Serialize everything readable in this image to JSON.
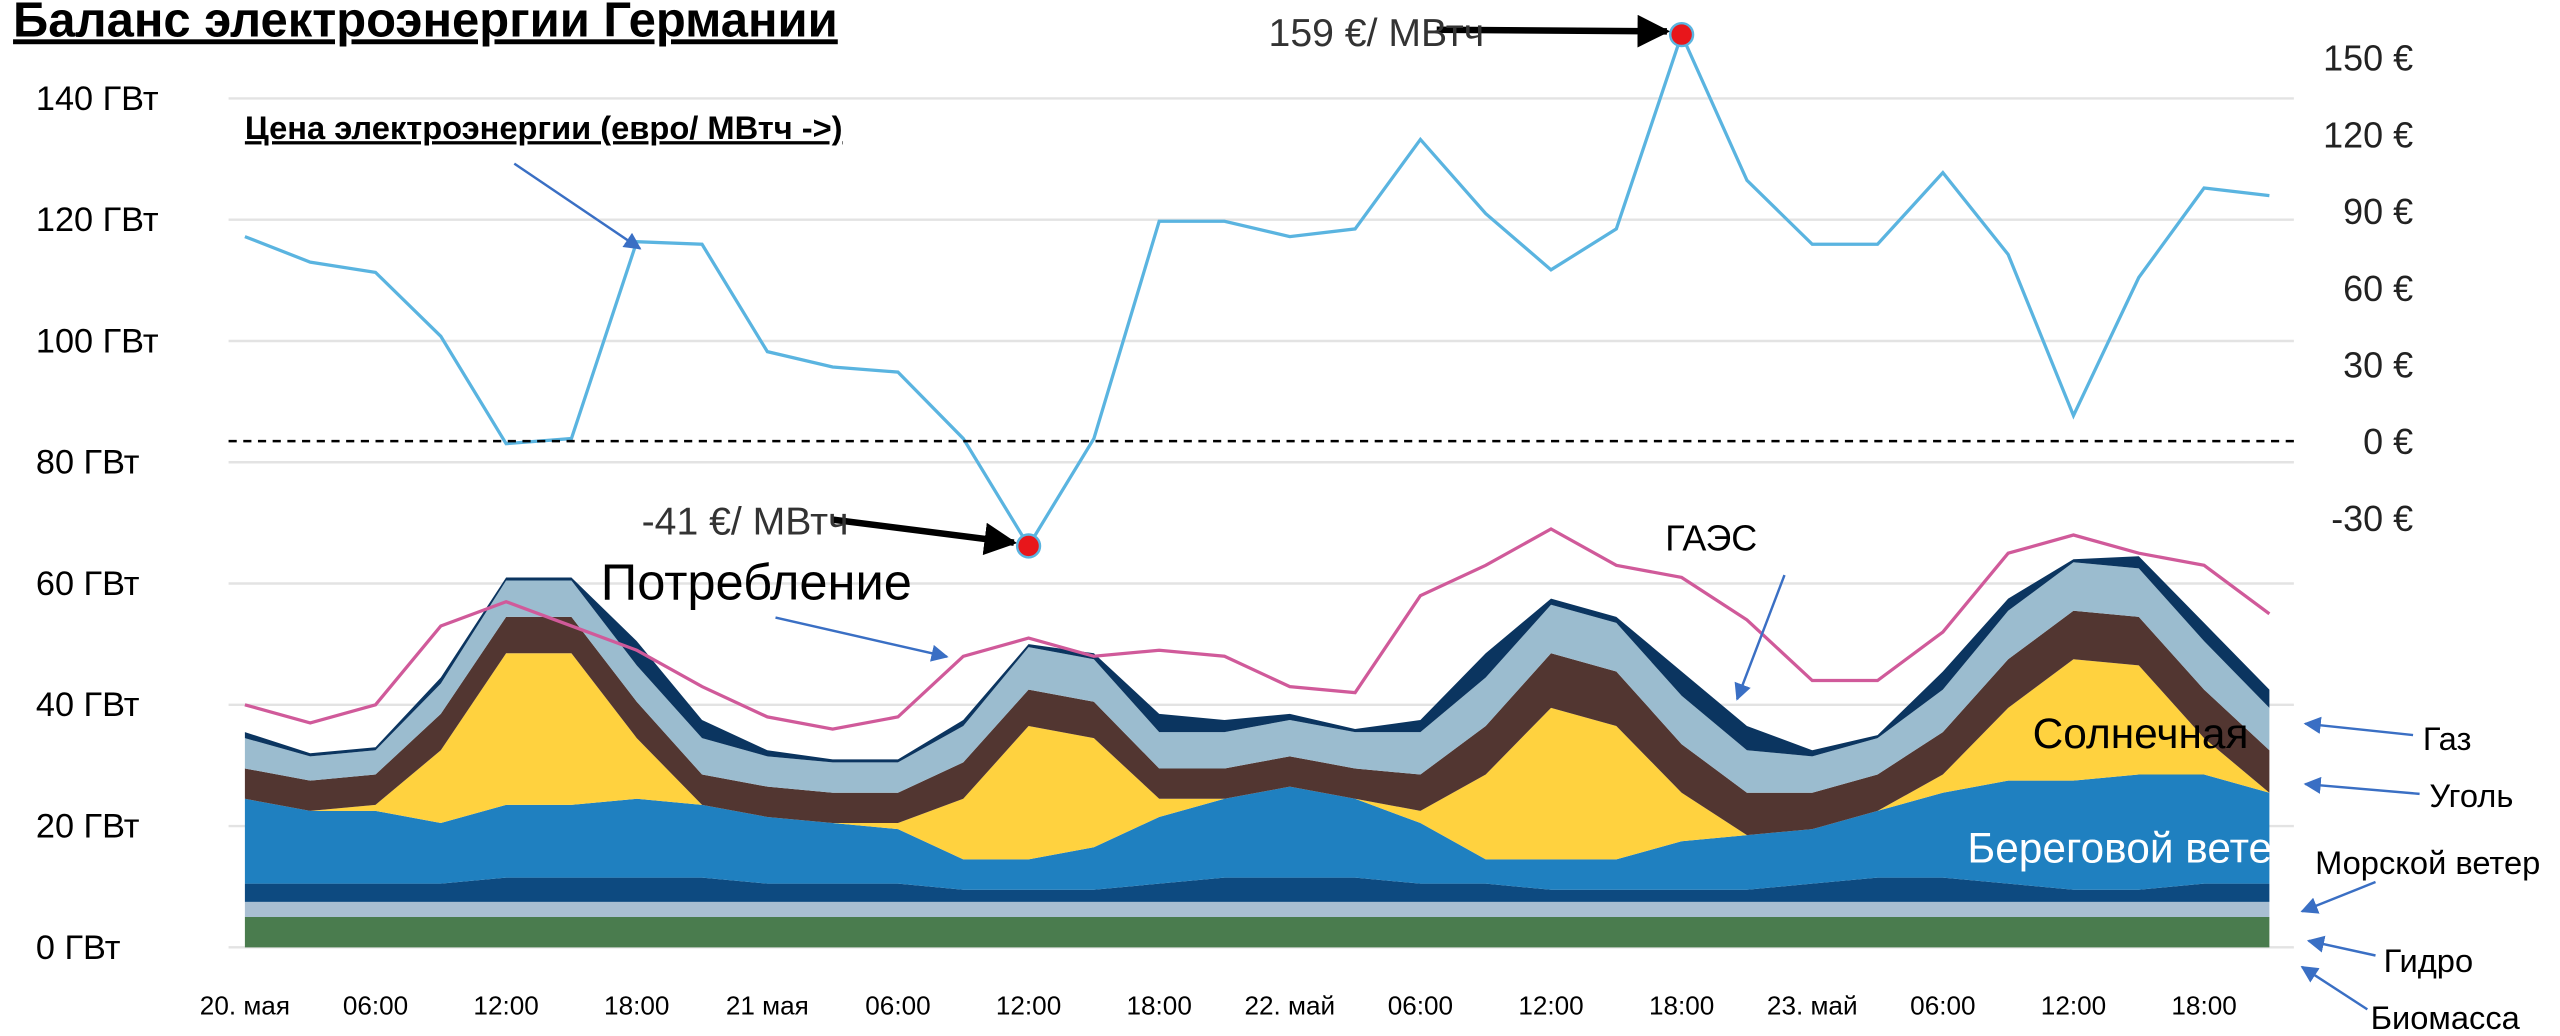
{
  "chart_data": {
    "type": "area",
    "title": "Баланс электроэнергии Германии",
    "categories": [
      "20. мая",
      null,
      "06:00",
      null,
      "12:00",
      null,
      "18:00",
      null,
      "21 мая",
      null,
      "06:00",
      null,
      "12:00",
      null,
      "18:00",
      null,
      "22. май",
      null,
      "06:00",
      null,
      "12:00",
      null,
      "18:00",
      null,
      "23. май",
      null,
      "06:00",
      null,
      "12:00",
      null,
      "18:00",
      null
    ],
    "stacked": true,
    "series": [
      {
        "name": "Биомасса",
        "color": "#4a7c4e",
        "values": [
          5,
          5,
          5,
          5,
          5,
          5,
          5,
          5,
          5,
          5,
          5,
          5,
          5,
          5,
          5,
          5,
          5,
          5,
          5,
          5,
          5,
          5,
          5,
          5,
          5,
          5,
          5,
          5,
          5,
          5,
          5,
          5
        ]
      },
      {
        "name": "Гидро",
        "color": "#a9bfd2",
        "values": [
          2.5,
          2.5,
          2.5,
          2.5,
          2.5,
          2.5,
          2.5,
          2.5,
          2.5,
          2.5,
          2.5,
          2.5,
          2.5,
          2.5,
          2.5,
          2.5,
          2.5,
          2.5,
          2.5,
          2.5,
          2.5,
          2.5,
          2.5,
          2.5,
          2.5,
          2.5,
          2.5,
          2.5,
          2.5,
          2.5,
          2.5,
          2.5
        ]
      },
      {
        "name": "Морской ветер",
        "color": "#0d4a80",
        "values": [
          3,
          3,
          3,
          3,
          4,
          4,
          4,
          4,
          3,
          3,
          3,
          2,
          2,
          2,
          3,
          4,
          4,
          4,
          3,
          3,
          2,
          2,
          2,
          2,
          3,
          4,
          4,
          3,
          2,
          2,
          3,
          3
        ]
      },
      {
        "name": "Береговой ветер",
        "color": "#1f80c0",
        "values": [
          14,
          12,
          12,
          10,
          12,
          12,
          13,
          12,
          11,
          10,
          9,
          5,
          5,
          7,
          11,
          13,
          15,
          13,
          10,
          4,
          5,
          5,
          8,
          9,
          9,
          11,
          14,
          17,
          18,
          19,
          18,
          15
        ]
      },
      {
        "name": "Солнечная",
        "color": "#ffd23f",
        "values": [
          0,
          0,
          1,
          12,
          25,
          25,
          10,
          0,
          0,
          0,
          1,
          10,
          22,
          18,
          3,
          0,
          0,
          0,
          2,
          14,
          25,
          22,
          8,
          0,
          0,
          0,
          3,
          12,
          20,
          18,
          6,
          0
        ]
      },
      {
        "name": "Уголь",
        "color": "#523631",
        "values": [
          5,
          5,
          5,
          6,
          6,
          6,
          6,
          5,
          5,
          5,
          5,
          6,
          6,
          6,
          5,
          5,
          5,
          5,
          6,
          8,
          9,
          9,
          8,
          7,
          6,
          6,
          7,
          8,
          8,
          8,
          8,
          7
        ]
      },
      {
        "name": "Газ",
        "color": "#9bbccf",
        "values": [
          5,
          4,
          4,
          5,
          6,
          6,
          6,
          6,
          5,
          5,
          5,
          6,
          7,
          7,
          6,
          6,
          6,
          6,
          7,
          8,
          8,
          8,
          8,
          7,
          6,
          6,
          7,
          8,
          8,
          8,
          8,
          7
        ]
      },
      {
        "name": "ГАЭС",
        "color": "#0b3560",
        "values": [
          1,
          0.5,
          0.5,
          1,
          0.5,
          0.5,
          4,
          3,
          1,
          0.5,
          0.5,
          1,
          0.5,
          1,
          3,
          2,
          1,
          0.5,
          2,
          4,
          1,
          1,
          4,
          4,
          1,
          0.5,
          3,
          2,
          0.5,
          2,
          3,
          3
        ]
      },
      {
        "name": "Потребление",
        "type": "line",
        "color": "#d05a9a",
        "values": [
          40,
          37,
          40,
          53,
          57,
          53,
          49,
          43,
          38,
          36,
          38,
          48,
          51,
          48,
          49,
          48,
          43,
          42,
          58,
          63,
          69,
          63,
          61,
          54,
          44,
          44,
          52,
          65,
          68,
          65,
          63,
          55
        ]
      },
      {
        "name": "Цена электроэнергии (евро/ МВтч ->)",
        "type": "line",
        "axis": "y2",
        "color": "#5ab4e0",
        "values": [
          80,
          70,
          66,
          41,
          -1,
          1,
          78,
          77,
          35,
          29,
          27,
          1,
          -41,
          1,
          86,
          86,
          80,
          83,
          118,
          89,
          67,
          83,
          159,
          102,
          77,
          77,
          105,
          73,
          10,
          64,
          99,
          96
        ]
      }
    ],
    "ylim": [
      0,
      152
    ],
    "yticks": [
      {
        "value": 0,
        "label": "0 ГВт"
      },
      {
        "value": 20,
        "label": "20 ГВт"
      },
      {
        "value": 40,
        "label": "40 ГВт"
      },
      {
        "value": 60,
        "label": "60 ГВт"
      },
      {
        "value": 80,
        "label": "80 ГВт"
      },
      {
        "value": 100,
        "label": "100 ГВт"
      },
      {
        "value": 120,
        "label": "120 ГВт"
      },
      {
        "value": 140,
        "label": "140 ГВт"
      }
    ],
    "y2lim": [
      -198,
      162.5
    ],
    "y2ticks": [
      {
        "value": -30,
        "label": "-30 €"
      },
      {
        "value": 0,
        "label": "0 €"
      },
      {
        "value": 30,
        "label": "30 €"
      },
      {
        "value": 60,
        "label": "60 €"
      },
      {
        "value": 90,
        "label": "90 €"
      },
      {
        "value": 120,
        "label": "120 €"
      },
      {
        "value": 150,
        "label": "150 €"
      }
    ],
    "grid": true,
    "reference_line": {
      "axis": "y2",
      "value": 0,
      "style": "dashed"
    },
    "annotations": [
      {
        "text": "159 €/ МВтч",
        "series": 9,
        "index": 22,
        "marker_color": "#e8161b"
      },
      {
        "text": "-41 €/ МВтч",
        "series": 9,
        "index": 12,
        "marker_color": "#e8161b"
      }
    ]
  }
}
